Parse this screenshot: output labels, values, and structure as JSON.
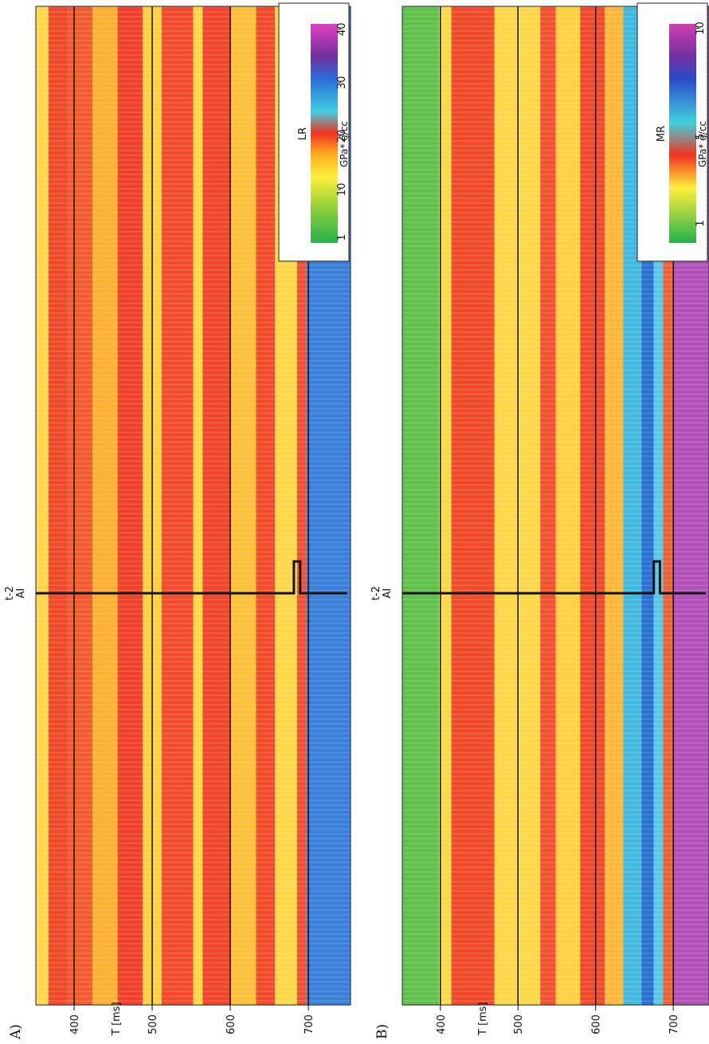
{
  "panels": [
    {
      "label": "A)",
      "well": "t-2",
      "log": "AI",
      "axis_label": "T [ms]",
      "tlim": [
        351,
        754
      ],
      "ticks": [
        400,
        500,
        600,
        700
      ],
      "colorbar": {
        "title": "LR",
        "unit": "GPa* g/cc",
        "lim": [
          0,
          41
        ],
        "ticks": [
          1,
          10,
          20,
          30,
          40
        ]
      }
    },
    {
      "label": "B)",
      "well": "t-2",
      "log": "AI",
      "axis_label": "T [ms]",
      "tlim": [
        351,
        746
      ],
      "ticks": [
        400,
        500,
        600,
        700
      ],
      "colorbar": {
        "title": "MR",
        "unit": "GPa* g/cc",
        "lim": [
          0.1,
          10.2
        ],
        "ticks": [
          1,
          5,
          10
        ]
      }
    }
  ]
}
